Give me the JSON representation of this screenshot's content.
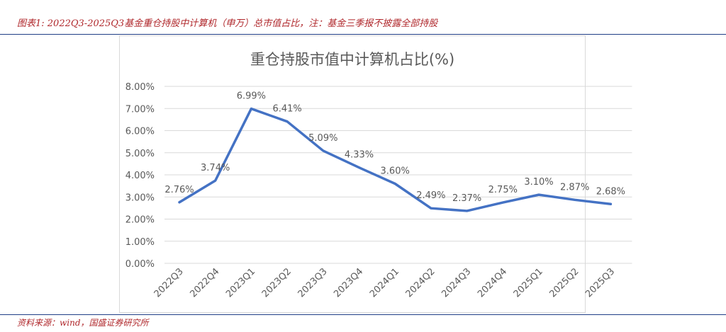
{
  "caption": "图表1: 2022Q3-2025Q3基金重仓持股中计算机（申万）总市值占比，注：基金三季报不披露全部持股",
  "source": "资料来源：wind，国盛证券研究所",
  "colors": {
    "line": "#4472c4",
    "caption": "#b0282c",
    "rule": "#1f3e86",
    "grid": "#d9d9d9",
    "axis_text": "#595959"
  },
  "chart_data": {
    "type": "line",
    "title": "重仓持股市值中计算机占比(%)",
    "xlabel": "",
    "ylabel": "",
    "categories": [
      "2022Q3",
      "2022Q4",
      "2023Q1",
      "2023Q2",
      "2023Q3",
      "2023Q4",
      "2024Q1",
      "2024Q2",
      "2024Q3",
      "2024Q4",
      "2025Q1",
      "2025Q2",
      "2025Q3"
    ],
    "series": [
      {
        "name": "计算机占比",
        "values": [
          2.76,
          3.74,
          6.99,
          6.41,
          5.09,
          4.33,
          3.6,
          2.49,
          2.37,
          2.75,
          3.1,
          2.87,
          2.68
        ]
      }
    ],
    "data_labels": [
      "2.76%",
      "3.74%",
      "6.99%",
      "6.41%",
      "5.09%",
      "4.33%",
      "3.60%",
      "2.49%",
      "2.37%",
      "2.75%",
      "3.10%",
      "2.87%",
      "2.68%"
    ],
    "ylim": [
      0,
      8
    ],
    "yticks": [
      0,
      1,
      2,
      3,
      4,
      5,
      6,
      7,
      8
    ],
    "ytick_labels": [
      "0.00%",
      "1.00%",
      "2.00%",
      "3.00%",
      "4.00%",
      "5.00%",
      "6.00%",
      "7.00%",
      "8.00%"
    ],
    "grid": true,
    "legend": "none"
  }
}
